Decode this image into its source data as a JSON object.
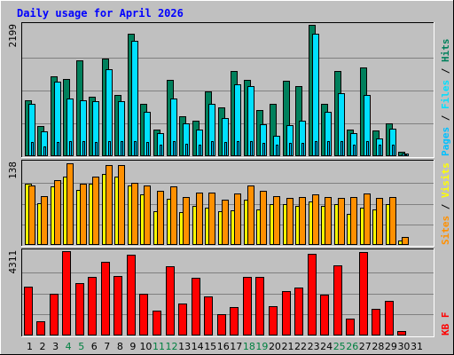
{
  "title": "Daily usage for April 2026",
  "colors": {
    "hits": "#00805c",
    "files": "#00e0ff",
    "pages": "#00c0ff",
    "visits": "#ffff00",
    "sites": "#ff9000",
    "kbf": "#ff0000",
    "title": "#0000ff",
    "weekend_day": "#008040"
  },
  "chart_data": [
    {
      "type": "bar",
      "panel": "top",
      "ymax_label": "2199",
      "ylim": [
        0,
        2199
      ],
      "x": [
        1,
        2,
        3,
        4,
        5,
        6,
        7,
        8,
        9,
        10,
        11,
        12,
        13,
        14,
        15,
        16,
        17,
        18,
        19,
        20,
        21,
        22,
        23,
        24,
        25,
        26,
        27,
        28,
        29,
        30,
        31
      ],
      "legend": [
        {
          "text": "Pages",
          "color_key": "pages"
        },
        {
          "text": " / ",
          "color_key": "sep"
        },
        {
          "text": "Files",
          "color_key": "files"
        },
        {
          "text": " / ",
          "color_key": "sep"
        },
        {
          "text": "Hits",
          "color_key": "hits"
        }
      ],
      "series": [
        {
          "name": "Hits",
          "color_key": "hits",
          "values": [
            930,
            500,
            1330,
            1300,
            1600,
            1000,
            1630,
            1030,
            2050,
            880,
            450,
            1280,
            670,
            600,
            1080,
            820,
            1420,
            1280,
            770,
            870,
            1270,
            1170,
            2200,
            880,
            1420,
            450,
            1480,
            430,
            550,
            80,
            0
          ]
        },
        {
          "name": "Files",
          "color_key": "files",
          "values": [
            880,
            420,
            1250,
            960,
            940,
            920,
            1450,
            920,
            1930,
            740,
            380,
            960,
            550,
            450,
            870,
            640,
            1200,
            1170,
            530,
            340,
            520,
            600,
            2050,
            750,
            1060,
            380,
            1020,
            300,
            460,
            40,
            0
          ]
        },
        {
          "name": "Pages",
          "color_key": "pages",
          "values": [
            240,
            170,
            240,
            250,
            250,
            240,
            250,
            250,
            260,
            240,
            190,
            250,
            210,
            200,
            250,
            240,
            250,
            250,
            220,
            200,
            230,
            230,
            260,
            250,
            250,
            190,
            250,
            190,
            200,
            30,
            0
          ]
        }
      ]
    },
    {
      "type": "bar",
      "panel": "middle",
      "ymax_label": "138",
      "ylim": [
        0,
        138
      ],
      "x": [
        1,
        2,
        3,
        4,
        5,
        6,
        7,
        8,
        9,
        10,
        11,
        12,
        13,
        14,
        15,
        16,
        17,
        18,
        19,
        20,
        21,
        22,
        23,
        24,
        25,
        26,
        27,
        28,
        29,
        30,
        31
      ],
      "legend": [
        {
          "text": "Sites",
          "color_key": "sites"
        },
        {
          "text": " / ",
          "color_key": "sep"
        },
        {
          "text": "Visits",
          "color_key": "visits"
        }
      ],
      "series": [
        {
          "name": "Visits",
          "color_key": "visits",
          "values": [
            102,
            70,
            98,
            114,
            92,
            102,
            118,
            114,
            100,
            84,
            57,
            77,
            55,
            65,
            62,
            56,
            58,
            76,
            59,
            68,
            68,
            66,
            73,
            66,
            68,
            52,
            63,
            60,
            68,
            8,
            0
          ]
        },
        {
          "name": "Sites",
          "color_key": "sites",
          "values": [
            100,
            82,
            108,
            137,
            102,
            114,
            134,
            134,
            104,
            100,
            90,
            98,
            80,
            88,
            88,
            76,
            86,
            100,
            90,
            82,
            78,
            80,
            84,
            80,
            78,
            80,
            86,
            78,
            80,
            14,
            0
          ]
        }
      ]
    },
    {
      "type": "bar",
      "panel": "bottom",
      "ymax_label": "4311",
      "ylim": [
        0,
        4311
      ],
      "x": [
        1,
        2,
        3,
        4,
        5,
        6,
        7,
        8,
        9,
        10,
        11,
        12,
        13,
        14,
        15,
        16,
        17,
        18,
        19,
        20,
        21,
        22,
        23,
        24,
        25,
        26,
        27,
        28,
        29,
        30,
        31
      ],
      "legend": [
        {
          "text": "KB F",
          "color_key": "kbf"
        }
      ],
      "series": [
        {
          "name": "KB F",
          "color_key": "kbf",
          "values": [
            2480,
            720,
            2150,
            4311,
            2660,
            3010,
            3770,
            3040,
            4140,
            2130,
            1250,
            3550,
            1620,
            2960,
            1980,
            1110,
            1430,
            2990,
            2990,
            1510,
            2270,
            2470,
            4190,
            2070,
            3580,
            880,
            4270,
            1350,
            1790,
            220,
            0
          ]
        }
      ]
    }
  ],
  "x_labels": [
    {
      "text": "1",
      "weekend": false
    },
    {
      "text": "2",
      "weekend": false
    },
    {
      "text": "3",
      "weekend": false
    },
    {
      "text": "4",
      "weekend": true
    },
    {
      "text": "5",
      "weekend": true
    },
    {
      "text": "6",
      "weekend": false
    },
    {
      "text": "7",
      "weekend": false
    },
    {
      "text": "8",
      "weekend": false
    },
    {
      "text": "9",
      "weekend": false
    },
    {
      "text": "10",
      "weekend": false
    },
    {
      "text": "11",
      "weekend": true
    },
    {
      "text": "12",
      "weekend": true
    },
    {
      "text": "13",
      "weekend": false
    },
    {
      "text": "14",
      "weekend": false
    },
    {
      "text": "15",
      "weekend": false
    },
    {
      "text": "16",
      "weekend": false
    },
    {
      "text": "17",
      "weekend": false
    },
    {
      "text": "18",
      "weekend": true
    },
    {
      "text": "19",
      "weekend": true
    },
    {
      "text": "20",
      "weekend": false
    },
    {
      "text": "21",
      "weekend": false
    },
    {
      "text": "22",
      "weekend": false
    },
    {
      "text": "23",
      "weekend": false
    },
    {
      "text": "24",
      "weekend": false
    },
    {
      "text": "25",
      "weekend": true
    },
    {
      "text": "26",
      "weekend": true
    },
    {
      "text": "27",
      "weekend": false
    },
    {
      "text": "28",
      "weekend": false
    },
    {
      "text": "29",
      "weekend": false
    },
    {
      "text": "30",
      "weekend": false
    },
    {
      "text": "31",
      "weekend": false
    }
  ]
}
